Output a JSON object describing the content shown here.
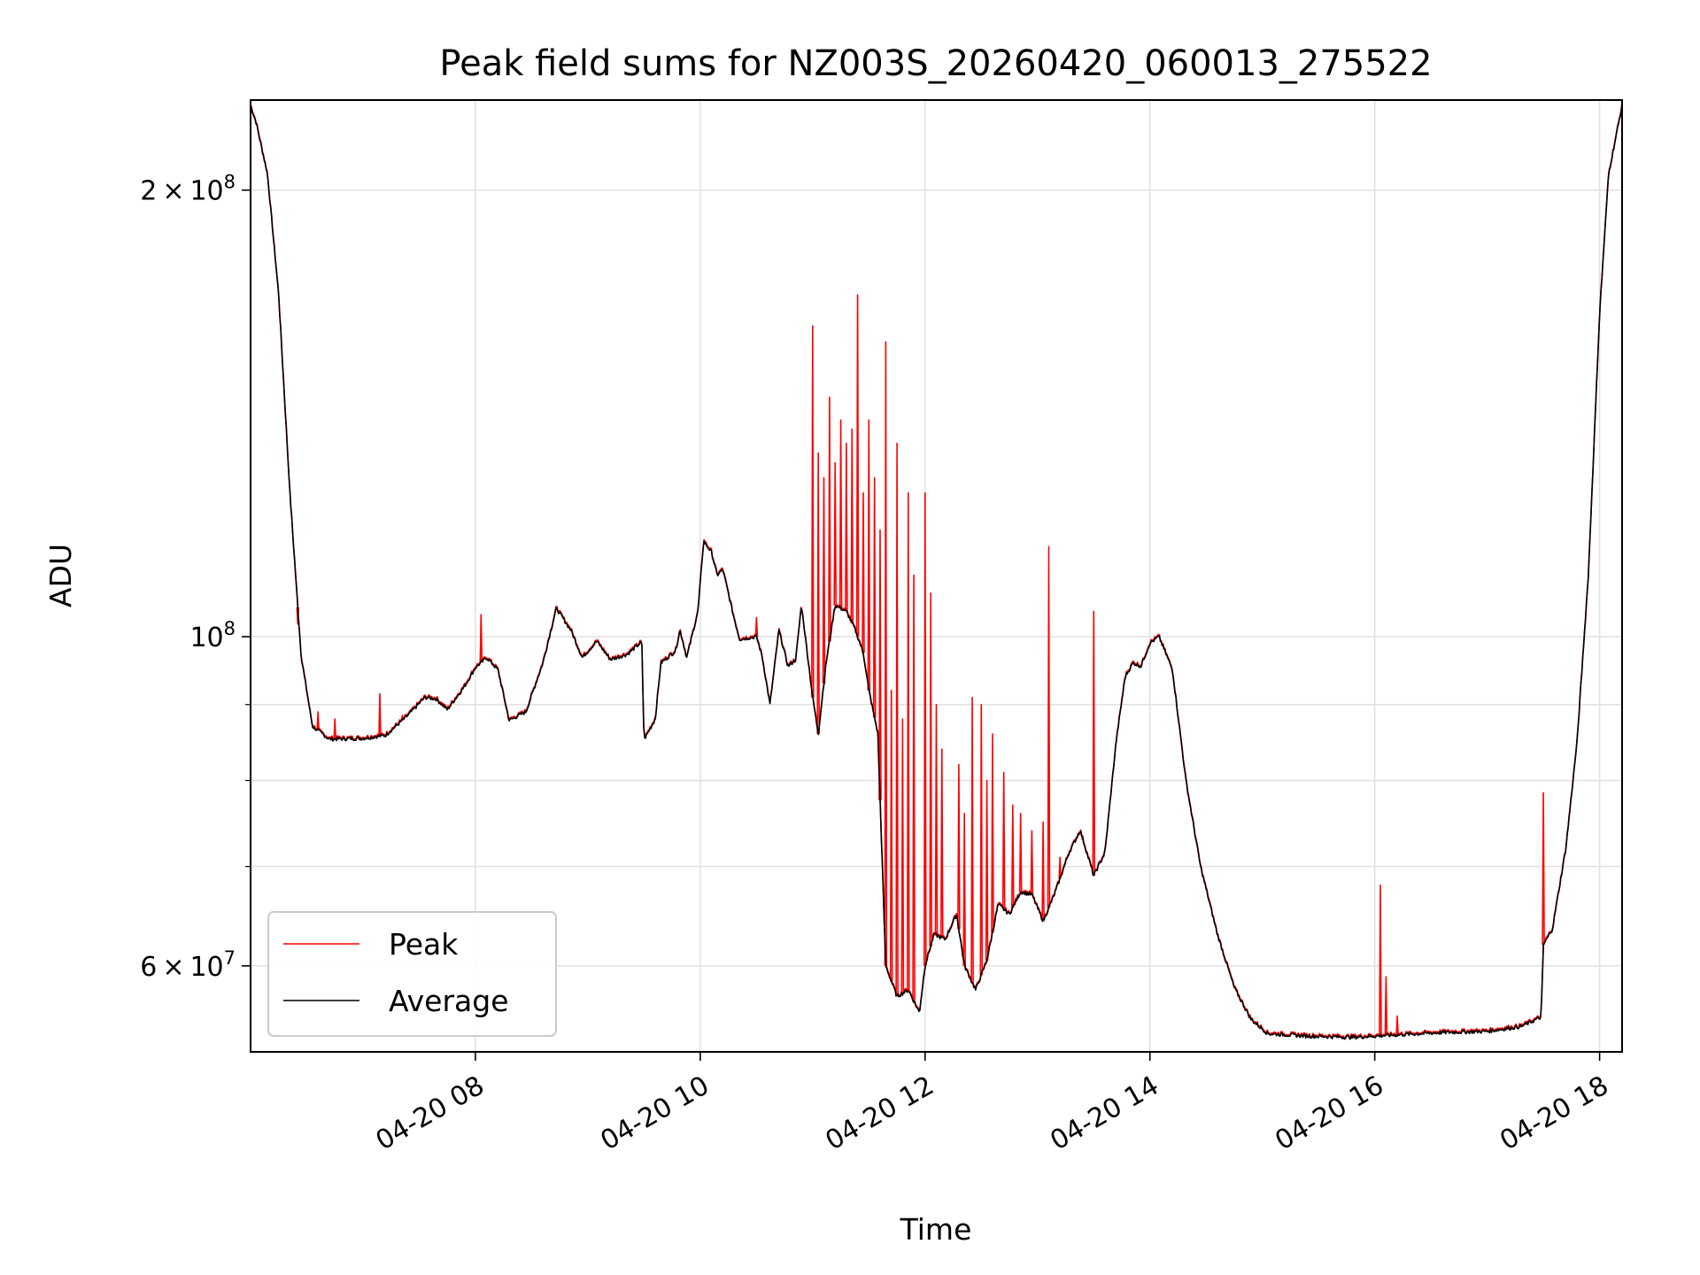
{
  "chart_data": {
    "type": "line",
    "title": "Peak field sums for NZ003S_20260420_060013_275522",
    "xlabel": "Time",
    "ylabel": "ADU",
    "xlim_hours": [
      6.0,
      18.2
    ],
    "ylim": [
      52500000,
      230000000
    ],
    "y_scale": "log",
    "grid": true,
    "legend_position": "lower-left",
    "x_ticks": [
      {
        "hour": 8,
        "label": "04-20 08"
      },
      {
        "hour": 10,
        "label": "04-20 10"
      },
      {
        "hour": 12,
        "label": "04-20 12"
      },
      {
        "hour": 14,
        "label": "04-20 14"
      },
      {
        "hour": 16,
        "label": "04-20 16"
      },
      {
        "hour": 18,
        "label": "04-20 18"
      }
    ],
    "y_major_ticks": [
      {
        "value": 60000000,
        "mantissa": "6",
        "exponent": "7"
      },
      {
        "value": 100000000,
        "mantissa": "",
        "exponent": "8"
      },
      {
        "value": 200000000,
        "mantissa": "2",
        "exponent": "8"
      }
    ],
    "y_minor_ticks": [
      70000000,
      80000000,
      90000000
    ],
    "times_symbol": "×",
    "base": "10",
    "series": [
      {
        "name": "Average",
        "color": "#000000",
        "points": [
          [
            6.0,
            228000000
          ],
          [
            6.05,
            222000000
          ],
          [
            6.15,
            205000000
          ],
          [
            6.25,
            170000000
          ],
          [
            6.35,
            125000000
          ],
          [
            6.45,
            97000000
          ],
          [
            6.55,
            87000000
          ],
          [
            6.7,
            85300000
          ],
          [
            7.0,
            85400000
          ],
          [
            7.2,
            85800000
          ],
          [
            7.4,
            88500000
          ],
          [
            7.55,
            91000000
          ],
          [
            7.65,
            90800000
          ],
          [
            7.75,
            89300000
          ],
          [
            7.9,
            92500000
          ],
          [
            8.0,
            95300000
          ],
          [
            8.1,
            96800000
          ],
          [
            8.2,
            95000000
          ],
          [
            8.3,
            87800000
          ],
          [
            8.45,
            89000000
          ],
          [
            8.6,
            96000000
          ],
          [
            8.72,
            104500000
          ],
          [
            8.85,
            101000000
          ],
          [
            8.95,
            96800000
          ],
          [
            9.08,
            99300000
          ],
          [
            9.2,
            96500000
          ],
          [
            9.35,
            97300000
          ],
          [
            9.48,
            99200000
          ],
          [
            9.5,
            85200000
          ],
          [
            9.6,
            88000000
          ],
          [
            9.65,
            96000000
          ],
          [
            9.78,
            97800000
          ],
          [
            9.82,
            101000000
          ],
          [
            9.88,
            96800000
          ],
          [
            9.98,
            104000000
          ],
          [
            10.03,
            116000000
          ],
          [
            10.1,
            114000000
          ],
          [
            10.15,
            110000000
          ],
          [
            10.2,
            111000000
          ],
          [
            10.3,
            103000000
          ],
          [
            10.35,
            99600000
          ],
          [
            10.5,
            100000000
          ],
          [
            10.55,
            97000000
          ],
          [
            10.62,
            90000000
          ],
          [
            10.7,
            101000000
          ],
          [
            10.78,
            95500000
          ],
          [
            10.85,
            96500000
          ],
          [
            10.9,
            105000000
          ],
          [
            11.0,
            91000000
          ],
          [
            11.05,
            86000000
          ],
          [
            11.12,
            96000000
          ],
          [
            11.2,
            105000000
          ],
          [
            11.3,
            104000000
          ],
          [
            11.38,
            101000000
          ],
          [
            11.45,
            97500000
          ],
          [
            11.5,
            92000000
          ],
          [
            11.58,
            86000000
          ],
          [
            11.65,
            60000000
          ],
          [
            11.75,
            57200000
          ],
          [
            11.85,
            57800000
          ],
          [
            11.95,
            55800000
          ],
          [
            12.0,
            60000000
          ],
          [
            12.08,
            63000000
          ],
          [
            12.18,
            62500000
          ],
          [
            12.28,
            65000000
          ],
          [
            12.35,
            60000000
          ],
          [
            12.45,
            57800000
          ],
          [
            12.55,
            60500000
          ],
          [
            12.65,
            66000000
          ],
          [
            12.75,
            65000000
          ],
          [
            12.85,
            67300000
          ],
          [
            12.95,
            67000000
          ],
          [
            13.05,
            64300000
          ],
          [
            13.15,
            67000000
          ],
          [
            13.28,
            71500000
          ],
          [
            13.38,
            74000000
          ],
          [
            13.5,
            69000000
          ],
          [
            13.6,
            71500000
          ],
          [
            13.7,
            85000000
          ],
          [
            13.78,
            94000000
          ],
          [
            13.85,
            96000000
          ],
          [
            13.92,
            95500000
          ],
          [
            14.0,
            99000000
          ],
          [
            14.08,
            100000000
          ],
          [
            14.2,
            95000000
          ],
          [
            14.32,
            80000000
          ],
          [
            14.45,
            70000000
          ],
          [
            14.6,
            63000000
          ],
          [
            14.75,
            58000000
          ],
          [
            14.9,
            55200000
          ],
          [
            15.05,
            54000000
          ],
          [
            15.4,
            53800000
          ],
          [
            15.8,
            53700000
          ],
          [
            16.2,
            53900000
          ],
          [
            16.6,
            54100000
          ],
          [
            17.0,
            54200000
          ],
          [
            17.3,
            54600000
          ],
          [
            17.48,
            55400000
          ],
          [
            17.5,
            62000000
          ],
          [
            17.58,
            63500000
          ],
          [
            17.7,
            72000000
          ],
          [
            17.8,
            85000000
          ],
          [
            17.9,
            110000000
          ],
          [
            18.0,
            165000000
          ],
          [
            18.08,
            205000000
          ],
          [
            18.2,
            228000000
          ]
        ]
      },
      {
        "name": "Peak",
        "color": "#ff0000",
        "spikes": [
          [
            6.42,
            102000000
          ],
          [
            6.6,
            89000000
          ],
          [
            6.75,
            88000000
          ],
          [
            7.15,
            91500000
          ],
          [
            7.35,
            88500000
          ],
          [
            8.05,
            103500000
          ],
          [
            9.6,
            88000000
          ],
          [
            10.5,
            103000000
          ],
          [
            11.0,
            162000000
          ],
          [
            11.05,
            133000000
          ],
          [
            11.1,
            128000000
          ],
          [
            11.15,
            145000000
          ],
          [
            11.2,
            131000000
          ],
          [
            11.25,
            140000000
          ],
          [
            11.3,
            135000000
          ],
          [
            11.35,
            138000000
          ],
          [
            11.4,
            170000000
          ],
          [
            11.45,
            125000000
          ],
          [
            11.5,
            140000000
          ],
          [
            11.55,
            128000000
          ],
          [
            11.6,
            118000000
          ],
          [
            11.65,
            158000000
          ],
          [
            11.7,
            92000000
          ],
          [
            11.75,
            135000000
          ],
          [
            11.8,
            88000000
          ],
          [
            11.85,
            125000000
          ],
          [
            11.9,
            110000000
          ],
          [
            12.0,
            125000000
          ],
          [
            12.05,
            107000000
          ],
          [
            12.1,
            90000000
          ],
          [
            12.15,
            84000000
          ],
          [
            12.3,
            82000000
          ],
          [
            12.35,
            76000000
          ],
          [
            12.42,
            91000000
          ],
          [
            12.5,
            90000000
          ],
          [
            12.55,
            80000000
          ],
          [
            12.6,
            86000000
          ],
          [
            12.7,
            81000000
          ],
          [
            12.78,
            77000000
          ],
          [
            12.85,
            76000000
          ],
          [
            12.95,
            74000000
          ],
          [
            13.05,
            75000000
          ],
          [
            13.1,
            115000000
          ],
          [
            13.2,
            71000000
          ],
          [
            13.4,
            73000000
          ],
          [
            13.5,
            104000000
          ],
          [
            16.05,
            68000000
          ],
          [
            16.1,
            59000000
          ],
          [
            16.2,
            55500000
          ],
          [
            17.5,
            78500000
          ]
        ]
      }
    ]
  }
}
